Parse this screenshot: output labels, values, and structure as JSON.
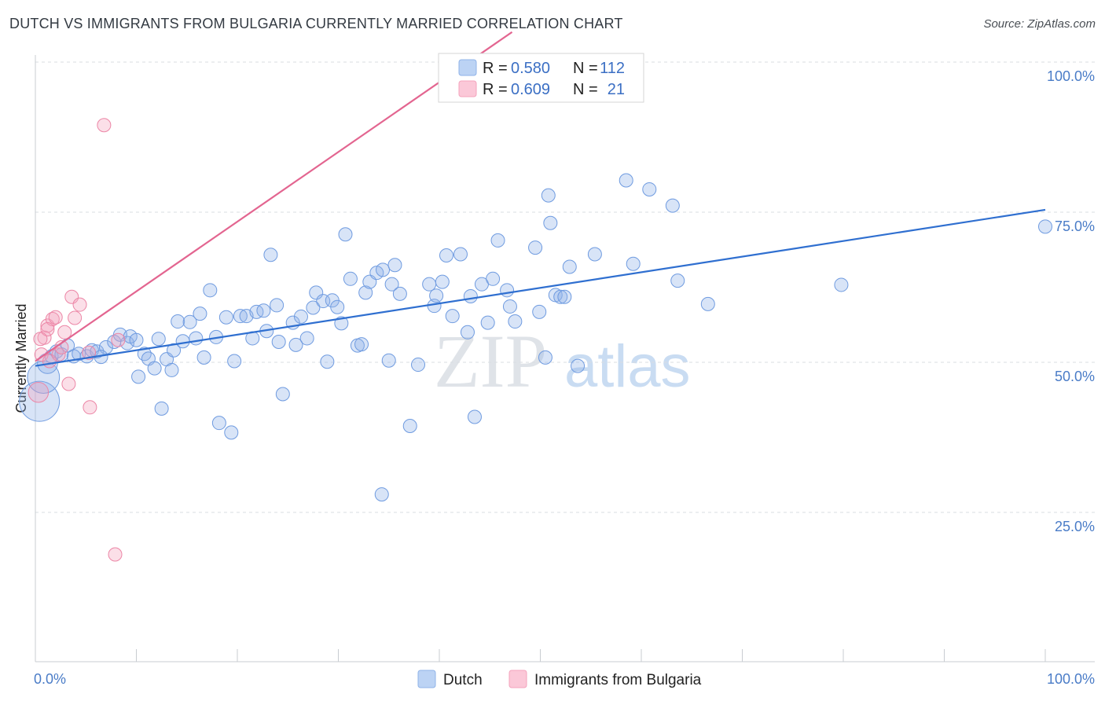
{
  "header": {
    "title": "DUTCH VS IMMIGRANTS FROM BULGARIA CURRENTLY MARRIED CORRELATION CHART",
    "source": "Source: ZipAtlas.com"
  },
  "watermark": {
    "zip": "ZIP",
    "atlas": "atlas"
  },
  "legend": {
    "r_label": "R =",
    "n_label": "N =",
    "dutch": {
      "r": "0.580",
      "n": "112",
      "color": "#8fb3e8"
    },
    "bulgaria": {
      "r": "0.609",
      "n": "21",
      "color": "#f4a3bd"
    }
  },
  "bottom_legend": {
    "dutch_label": "Dutch",
    "bulgaria_label": "Immigrants from Bulgaria"
  },
  "chart_data": {
    "type": "scatter",
    "title": "DUTCH VS IMMIGRANTS FROM BULGARIA CURRENTLY MARRIED CORRELATION CHART",
    "xlabel": "",
    "ylabel": "Currently Married",
    "xlim": [
      0,
      100
    ],
    "ylim": [
      0,
      105
    ],
    "x_tick_labels": [
      "0.0%",
      "100.0%"
    ],
    "y_ticks": [
      {
        "value": 25,
        "label": "25.0%"
      },
      {
        "value": 50,
        "label": "50.0%"
      },
      {
        "value": 75,
        "label": "75.0%"
      },
      {
        "value": 100,
        "label": "100.0%"
      }
    ],
    "series": [
      {
        "name": "Dutch",
        "color": "#8fb3e8",
        "stroke": "#6f9be0",
        "trend_color": "#2f6fd0",
        "trend": {
          "x0": 0,
          "y0": 49.4,
          "x1": 100,
          "y1": 75.4
        },
        "points": [
          {
            "x": 0.4,
            "y": 43.5,
            "s": 3
          },
          {
            "x": 0.8,
            "y": 47.5,
            "s": 2.4
          },
          {
            "x": 1.2,
            "y": 49.8,
            "s": 1.5
          },
          {
            "x": 1.6,
            "y": 51.0,
            "s": 1
          },
          {
            "x": 2.1,
            "y": 51.8,
            "s": 1
          },
          {
            "x": 2.6,
            "y": 51.3,
            "s": 1
          },
          {
            "x": 3.2,
            "y": 52.8,
            "s": 1
          },
          {
            "x": 3.8,
            "y": 51.0,
            "s": 1
          },
          {
            "x": 4.3,
            "y": 51.4,
            "s": 1
          },
          {
            "x": 5.1,
            "y": 51.0,
            "s": 1
          },
          {
            "x": 5.6,
            "y": 52.0,
            "s": 1
          },
          {
            "x": 6.1,
            "y": 51.8,
            "s": 1
          },
          {
            "x": 7.0,
            "y": 52.5,
            "s": 1
          },
          {
            "x": 6.5,
            "y": 50.9,
            "s": 1
          },
          {
            "x": 7.8,
            "y": 53.4,
            "s": 1
          },
          {
            "x": 8.4,
            "y": 54.6,
            "s": 1
          },
          {
            "x": 9.1,
            "y": 53.2,
            "s": 1
          },
          {
            "x": 9.4,
            "y": 54.3,
            "s": 1
          },
          {
            "x": 10.0,
            "y": 53.7,
            "s": 1
          },
          {
            "x": 10.2,
            "y": 47.6,
            "s": 1
          },
          {
            "x": 10.8,
            "y": 51.4,
            "s": 1
          },
          {
            "x": 11.2,
            "y": 50.6,
            "s": 1
          },
          {
            "x": 11.8,
            "y": 49.0,
            "s": 1
          },
          {
            "x": 12.2,
            "y": 53.9,
            "s": 1
          },
          {
            "x": 12.5,
            "y": 42.3,
            "s": 1
          },
          {
            "x": 13.0,
            "y": 50.5,
            "s": 1
          },
          {
            "x": 13.5,
            "y": 48.7,
            "s": 1
          },
          {
            "x": 13.7,
            "y": 52.0,
            "s": 1
          },
          {
            "x": 14.1,
            "y": 56.8,
            "s": 1
          },
          {
            "x": 14.6,
            "y": 53.5,
            "s": 1
          },
          {
            "x": 15.3,
            "y": 56.7,
            "s": 1
          },
          {
            "x": 15.9,
            "y": 54.0,
            "s": 1
          },
          {
            "x": 16.3,
            "y": 58.1,
            "s": 1
          },
          {
            "x": 16.7,
            "y": 50.8,
            "s": 1
          },
          {
            "x": 17.3,
            "y": 62.0,
            "s": 1
          },
          {
            "x": 17.9,
            "y": 54.2,
            "s": 1
          },
          {
            "x": 18.2,
            "y": 39.9,
            "s": 1
          },
          {
            "x": 18.9,
            "y": 57.5,
            "s": 1
          },
          {
            "x": 19.4,
            "y": 38.3,
            "s": 1
          },
          {
            "x": 19.7,
            "y": 50.2,
            "s": 1
          },
          {
            "x": 20.3,
            "y": 57.7,
            "s": 1
          },
          {
            "x": 20.9,
            "y": 57.7,
            "s": 1
          },
          {
            "x": 21.5,
            "y": 54.0,
            "s": 1
          },
          {
            "x": 21.9,
            "y": 58.4,
            "s": 1
          },
          {
            "x": 22.6,
            "y": 58.6,
            "s": 1
          },
          {
            "x": 22.9,
            "y": 55.2,
            "s": 1
          },
          {
            "x": 23.3,
            "y": 67.9,
            "s": 1
          },
          {
            "x": 23.9,
            "y": 59.5,
            "s": 1
          },
          {
            "x": 24.1,
            "y": 53.4,
            "s": 1
          },
          {
            "x": 24.5,
            "y": 44.7,
            "s": 1
          },
          {
            "x": 25.5,
            "y": 56.6,
            "s": 1
          },
          {
            "x": 25.8,
            "y": 52.9,
            "s": 1
          },
          {
            "x": 26.3,
            "y": 57.6,
            "s": 1
          },
          {
            "x": 26.9,
            "y": 54.0,
            "s": 1
          },
          {
            "x": 27.5,
            "y": 59.1,
            "s": 1
          },
          {
            "x": 27.8,
            "y": 61.6,
            "s": 1
          },
          {
            "x": 28.5,
            "y": 60.2,
            "s": 1
          },
          {
            "x": 28.9,
            "y": 50.1,
            "s": 1
          },
          {
            "x": 29.4,
            "y": 60.3,
            "s": 1
          },
          {
            "x": 29.9,
            "y": 59.2,
            "s": 1
          },
          {
            "x": 30.3,
            "y": 56.5,
            "s": 1
          },
          {
            "x": 30.7,
            "y": 71.3,
            "s": 1
          },
          {
            "x": 31.2,
            "y": 63.9,
            "s": 1
          },
          {
            "x": 31.9,
            "y": 52.8,
            "s": 1
          },
          {
            "x": 32.3,
            "y": 53.0,
            "s": 1
          },
          {
            "x": 32.7,
            "y": 61.6,
            "s": 1
          },
          {
            "x": 33.1,
            "y": 63.4,
            "s": 1
          },
          {
            "x": 33.8,
            "y": 64.9,
            "s": 1
          },
          {
            "x": 34.4,
            "y": 65.4,
            "s": 1
          },
          {
            "x": 35.0,
            "y": 50.3,
            "s": 1
          },
          {
            "x": 35.3,
            "y": 63.0,
            "s": 1
          },
          {
            "x": 35.6,
            "y": 66.2,
            "s": 1
          },
          {
            "x": 36.1,
            "y": 61.4,
            "s": 1
          },
          {
            "x": 34.3,
            "y": 28.0,
            "s": 1
          },
          {
            "x": 37.1,
            "y": 39.4,
            "s": 1
          },
          {
            "x": 37.9,
            "y": 49.6,
            "s": 1
          },
          {
            "x": 39.0,
            "y": 63.0,
            "s": 1
          },
          {
            "x": 39.5,
            "y": 59.4,
            "s": 1
          },
          {
            "x": 39.7,
            "y": 61.1,
            "s": 1
          },
          {
            "x": 40.3,
            "y": 63.4,
            "s": 1
          },
          {
            "x": 40.7,
            "y": 67.8,
            "s": 1
          },
          {
            "x": 41.3,
            "y": 57.7,
            "s": 1
          },
          {
            "x": 42.1,
            "y": 68.0,
            "s": 1
          },
          {
            "x": 42.8,
            "y": 55.0,
            "s": 1
          },
          {
            "x": 43.1,
            "y": 61.0,
            "s": 1
          },
          {
            "x": 43.5,
            "y": 40.9,
            "s": 1
          },
          {
            "x": 44.2,
            "y": 63.0,
            "s": 1
          },
          {
            "x": 44.8,
            "y": 56.6,
            "s": 1
          },
          {
            "x": 45.3,
            "y": 63.9,
            "s": 1
          },
          {
            "x": 45.8,
            "y": 70.3,
            "s": 1
          },
          {
            "x": 46.7,
            "y": 62.0,
            "s": 1
          },
          {
            "x": 47.0,
            "y": 59.3,
            "s": 1
          },
          {
            "x": 47.5,
            "y": 56.8,
            "s": 1
          },
          {
            "x": 49.5,
            "y": 69.1,
            "s": 1
          },
          {
            "x": 49.9,
            "y": 58.4,
            "s": 1
          },
          {
            "x": 50.5,
            "y": 50.8,
            "s": 1
          },
          {
            "x": 50.8,
            "y": 77.8,
            "s": 1
          },
          {
            "x": 51.0,
            "y": 73.2,
            "s": 1
          },
          {
            "x": 51.5,
            "y": 61.2,
            "s": 1
          },
          {
            "x": 52.0,
            "y": 60.9,
            "s": 1
          },
          {
            "x": 52.4,
            "y": 60.9,
            "s": 1
          },
          {
            "x": 52.9,
            "y": 65.9,
            "s": 1
          },
          {
            "x": 53.7,
            "y": 49.4,
            "s": 1
          },
          {
            "x": 55.4,
            "y": 68.0,
            "s": 1
          },
          {
            "x": 58.5,
            "y": 80.3,
            "s": 1
          },
          {
            "x": 59.2,
            "y": 66.4,
            "s": 1
          },
          {
            "x": 60.8,
            "y": 78.8,
            "s": 1
          },
          {
            "x": 63.1,
            "y": 76.1,
            "s": 1
          },
          {
            "x": 63.6,
            "y": 63.6,
            "s": 1
          },
          {
            "x": 66.6,
            "y": 59.7,
            "s": 1
          },
          {
            "x": 79.8,
            "y": 62.9,
            "s": 1
          },
          {
            "x": 100.0,
            "y": 72.6,
            "s": 1
          }
        ]
      },
      {
        "name": "Immigrants from Bulgaria",
        "color": "#f4a3bd",
        "stroke": "#ec86a6",
        "trend_color": "#e36590",
        "trend": {
          "x0": 0,
          "y0": 50.2,
          "x1": 47.2,
          "y1": 105.0
        },
        "points": [
          {
            "x": 0.3,
            "y": 45.0,
            "s": 1.5
          },
          {
            "x": 0.6,
            "y": 51.3,
            "s": 1
          },
          {
            "x": 0.9,
            "y": 54.1,
            "s": 1
          },
          {
            "x": 1.2,
            "y": 56.1,
            "s": 1
          },
          {
            "x": 1.4,
            "y": 50.2,
            "s": 1
          },
          {
            "x": 1.7,
            "y": 57.2,
            "s": 1
          },
          {
            "x": 2.0,
            "y": 57.5,
            "s": 1
          },
          {
            "x": 2.3,
            "y": 51.3,
            "s": 1
          },
          {
            "x": 2.6,
            "y": 52.5,
            "s": 1
          },
          {
            "x": 2.9,
            "y": 55.0,
            "s": 1
          },
          {
            "x": 3.3,
            "y": 46.4,
            "s": 1
          },
          {
            "x": 3.6,
            "y": 60.9,
            "s": 1
          },
          {
            "x": 3.9,
            "y": 57.4,
            "s": 1
          },
          {
            "x": 4.4,
            "y": 59.6,
            "s": 1
          },
          {
            "x": 5.3,
            "y": 51.6,
            "s": 1
          },
          {
            "x": 5.4,
            "y": 42.5,
            "s": 1
          },
          {
            "x": 8.2,
            "y": 53.7,
            "s": 1
          },
          {
            "x": 6.8,
            "y": 89.5,
            "s": 1
          },
          {
            "x": 7.9,
            "y": 18.0,
            "s": 1
          },
          {
            "x": 1.2,
            "y": 55.5,
            "s": 1
          },
          {
            "x": 0.5,
            "y": 53.9,
            "s": 1
          }
        ]
      }
    ]
  }
}
